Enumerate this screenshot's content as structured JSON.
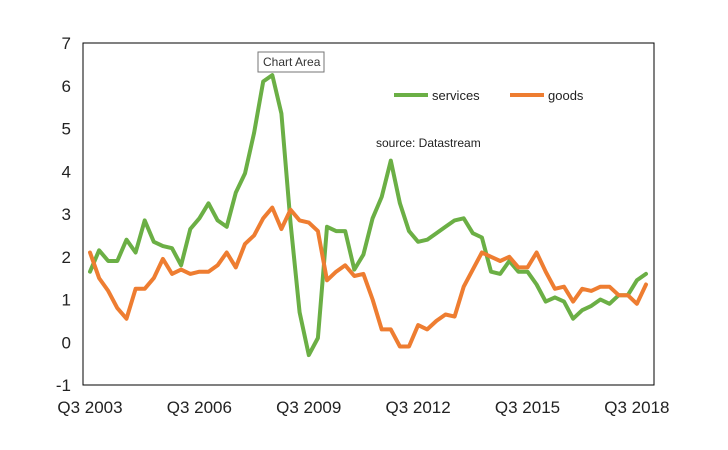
{
  "tooltip": {
    "text": "Chart Area"
  },
  "source_note": "source:  Datastream",
  "colors": {
    "services": "#6BAF45",
    "goods": "#EE7D31",
    "plot_border": "#000000",
    "tooltip_border": "#767676"
  },
  "chart_data": {
    "type": "line",
    "title": "",
    "xlabel": "",
    "ylabel": "",
    "ylim": [
      -1,
      7
    ],
    "yticks": [
      -1,
      0,
      1,
      2,
      3,
      4,
      5,
      6,
      7
    ],
    "xtick_labels": [
      "Q3 2003",
      "Q3 2006",
      "Q3 2009",
      "Q3 2012",
      "Q3 2015",
      "Q3 2018"
    ],
    "grid": false,
    "legend_position": "top-right",
    "x": [
      "Q3 2003",
      "Q4 2003",
      "Q1 2004",
      "Q2 2004",
      "Q3 2004",
      "Q4 2004",
      "Q1 2005",
      "Q2 2005",
      "Q3 2005",
      "Q4 2005",
      "Q1 2006",
      "Q2 2006",
      "Q3 2006",
      "Q4 2006",
      "Q1 2007",
      "Q2 2007",
      "Q3 2007",
      "Q4 2007",
      "Q1 2008",
      "Q2 2008",
      "Q3 2008",
      "Q4 2008",
      "Q1 2009",
      "Q2 2009",
      "Q3 2009",
      "Q4 2009",
      "Q1 2010",
      "Q2 2010",
      "Q3 2010",
      "Q4 2010",
      "Q1 2011",
      "Q2 2011",
      "Q3 2011",
      "Q4 2011",
      "Q1 2012",
      "Q2 2012",
      "Q3 2012",
      "Q4 2012",
      "Q1 2013",
      "Q2 2013",
      "Q3 2013",
      "Q4 2013",
      "Q1 2014",
      "Q2 2014",
      "Q3 2014",
      "Q4 2014",
      "Q1 2015",
      "Q2 2015",
      "Q3 2015",
      "Q4 2015",
      "Q1 2016",
      "Q2 2016",
      "Q3 2016",
      "Q4 2016",
      "Q1 2017",
      "Q2 2017",
      "Q3 2017",
      "Q4 2017",
      "Q1 2018",
      "Q2 2018",
      "Q3 2018",
      "Q4 2018"
    ],
    "series": [
      {
        "name": "services",
        "color": "#6BAF45",
        "values": [
          1.65,
          2.15,
          1.9,
          1.9,
          2.4,
          2.1,
          2.85,
          2.35,
          2.25,
          2.2,
          1.8,
          2.65,
          2.9,
          3.25,
          2.85,
          2.7,
          3.5,
          3.95,
          4.9,
          6.1,
          6.25,
          5.35,
          2.8,
          0.7,
          -0.3,
          0.1,
          2.7,
          2.6,
          2.6,
          1.7,
          2.05,
          2.9,
          3.4,
          4.25,
          3.25,
          2.6,
          2.35,
          2.4,
          2.55,
          2.7,
          2.85,
          2.9,
          2.55,
          2.45,
          1.65,
          1.6,
          1.9,
          1.65,
          1.65,
          1.35,
          0.95,
          1.05,
          0.95,
          0.55,
          0.75,
          0.85,
          1.0,
          0.9,
          1.1,
          1.1,
          1.45,
          1.6
        ]
      },
      {
        "name": "goods",
        "color": "#EE7D31",
        "values": [
          2.1,
          1.5,
          1.2,
          0.8,
          0.55,
          1.25,
          1.25,
          1.5,
          1.95,
          1.6,
          1.7,
          1.6,
          1.65,
          1.65,
          1.8,
          2.1,
          1.75,
          2.3,
          2.5,
          2.9,
          3.15,
          2.65,
          3.1,
          2.85,
          2.8,
          2.6,
          1.45,
          1.65,
          1.8,
          1.55,
          1.6,
          1.0,
          0.3,
          0.3,
          -0.1,
          -0.1,
          0.4,
          0.3,
          0.5,
          0.65,
          0.6,
          1.3,
          1.7,
          2.1,
          2.0,
          1.9,
          2.0,
          1.75,
          1.75,
          2.1,
          1.65,
          1.25,
          1.3,
          0.95,
          1.25,
          1.2,
          1.3,
          1.3,
          1.1,
          1.1,
          0.9,
          1.35
        ]
      }
    ]
  }
}
